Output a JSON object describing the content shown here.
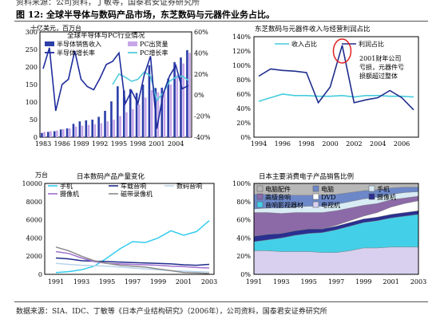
{
  "header": {
    "top_text": "资料来源：公司资料，丁敏等，国泰君安证券研究所",
    "figure_label": "图 12:",
    "figure_title": "全球半导体与数码产品市场，东芝数码与元器件业务占比。"
  },
  "footer": {
    "source": "数据来源：SIA、IDC、丁敏等《日本产业结构研究》（2006年），公司资料，国泰君安证券研究所"
  },
  "chart_data": [
    {
      "type": "bar",
      "title": "全球半导体与PC行业情况",
      "ylabel": "十亿美元，百万台",
      "ylim": [
        0,
        300
      ],
      "y2lim": [
        -40,
        60
      ],
      "y_ticks": [
        "0",
        "50",
        "100",
        "150",
        "200",
        "250",
        "300"
      ],
      "y2_ticks": [
        "-40%",
        "-20%",
        "0%",
        "20%",
        "40%",
        "60%"
      ],
      "x_ticks": [
        "1983",
        "1986",
        "1989",
        "1992",
        "1995",
        "1998",
        "2001",
        "2004"
      ],
      "colors": {
        "semi_bar": "#2c3ea8",
        "pc_bar": "#c6a6e8",
        "semi_growth": "#1f2d9c",
        "pc_growth": "#55ccdd"
      },
      "x": [
        1983,
        1984,
        1985,
        1986,
        1987,
        1988,
        1989,
        1990,
        1991,
        1992,
        1993,
        1994,
        1995,
        1996,
        1997,
        1998,
        1999,
        2000,
        2001,
        2002,
        2003,
        2004,
        2005,
        2006
      ],
      "series": [
        {
          "name": "半导体销售收入",
          "values": [
            12,
            15,
            17,
            22,
            25,
            38,
            45,
            48,
            50,
            58,
            75,
            102,
            145,
            133,
            137,
            126,
            150,
            205,
            140,
            141,
            167,
            214,
            227,
            248
          ]
        },
        {
          "name": "PC出货量",
          "values": [
            15,
            17,
            19,
            23,
            25,
            30,
            33,
            35,
            37,
            40,
            45,
            50,
            60,
            71,
            80,
            93,
            113,
            134,
            128,
            132,
            150,
            178,
            210,
            240
          ]
        },
        {
          "name": "半导体增长率",
          "values": [
            25,
            45,
            -15,
            10,
            15,
            42,
            15,
            8,
            5,
            16,
            29,
            32,
            40,
            -8,
            4,
            -8,
            19,
            37,
            -32,
            1,
            18,
            28,
            6,
            9
          ]
        },
        {
          "name": "PC增长率",
          "values": [
            null,
            null,
            null,
            null,
            null,
            null,
            null,
            null,
            null,
            null,
            null,
            10,
            20,
            17,
            13,
            15,
            22,
            18,
            -5,
            2,
            13,
            17,
            18,
            14
          ]
        }
      ]
    },
    {
      "type": "line",
      "title": "东芝数码与元器件收入与经营利润占比",
      "ylim": [
        0,
        140
      ],
      "y_ticks": [
        "0%",
        "20%",
        "40%",
        "60%",
        "80%",
        "100%",
        "120%",
        "140%"
      ],
      "x_ticks": [
        "1994",
        "1996",
        "1998",
        "2000",
        "2002",
        "2004",
        "2006"
      ],
      "colors": {
        "revenue": "#44ccdd",
        "profit": "#1f2d8c",
        "circle": "#e02020"
      },
      "x": [
        1994,
        1995,
        1996,
        1997,
        1998,
        1999,
        2000,
        2001,
        2002,
        2003,
        2004,
        2005,
        2006,
        2007
      ],
      "series": [
        {
          "name": "收入占比",
          "values": [
            50,
            55,
            60,
            58,
            58,
            57,
            57,
            58,
            56,
            58,
            58,
            57,
            57,
            56
          ]
        },
        {
          "name": "利润占比",
          "values": [
            85,
            95,
            93,
            92,
            90,
            48,
            70,
            128,
            48,
            52,
            55,
            65,
            55,
            38
          ]
        }
      ],
      "annotation": "2001财年公司亏损，元器件亏损额超过整体"
    },
    {
      "type": "line",
      "title": "日本数码产品产量变化",
      "ylabel": "万台",
      "ylim": [
        0,
        10000
      ],
      "y_ticks": [
        "0",
        "2000",
        "4000",
        "6000",
        "8000",
        "10000"
      ],
      "x_ticks": [
        "1991",
        "1993",
        "1995",
        "1997",
        "1999",
        "2001",
        "2003"
      ],
      "colors": {
        "phone": "#33ccee",
        "car": "#1f2d8c",
        "camera": "#b8d4ea",
        "vcr": "#a070d0",
        "tape": "#8a8a8a"
      },
      "x": [
        1991,
        1992,
        1993,
        1994,
        1995,
        1996,
        1997,
        1998,
        1999,
        2000,
        2001,
        2002,
        2003
      ],
      "series": [
        {
          "name": "手机",
          "values": [
            200,
            300,
            500,
            900,
            1800,
            2800,
            3600,
            3500,
            4000,
            4800,
            4300,
            4700,
            5900
          ]
        },
        {
          "name": "车载音响",
          "values": [
            1800,
            1700,
            1500,
            1450,
            1400,
            1350,
            1300,
            1250,
            1200,
            1150,
            1050,
            1000,
            1100
          ]
        },
        {
          "name": "数码音响",
          "values": [
            1200,
            1100,
            1000,
            950,
            900,
            800,
            700,
            600,
            500,
            400,
            350,
            300,
            250
          ]
        },
        {
          "name": "摄像机",
          "values": [
            2500,
            2300,
            1800,
            1400,
            1200,
            1150,
            1100,
            1050,
            1000,
            900,
            850,
            750,
            700
          ]
        },
        {
          "name": "磁带录像机",
          "values": [
            3000,
            2600,
            2000,
            1500,
            1200,
            1000,
            900,
            800,
            600,
            400,
            200,
            150,
            100
          ]
        }
      ]
    },
    {
      "type": "area",
      "title": "日本主要消费电子产品销售比例",
      "ylim": [
        0,
        100
      ],
      "y_ticks": [
        "0%",
        "20%",
        "40%",
        "60%",
        "80%",
        "100%"
      ],
      "x_ticks": [
        "1991",
        "1993",
        "1995",
        "1997",
        "1999",
        "2001",
        "2003"
      ],
      "x": [
        1991,
        1992,
        1993,
        1994,
        1995,
        1996,
        1997,
        1998,
        1999,
        2000,
        2001,
        2002,
        2003
      ],
      "series": [
        {
          "name": "电视机",
          "color": "#d8d0ee",
          "values": [
            26,
            26,
            25,
            25,
            25,
            24,
            24,
            26,
            29,
            29,
            30,
            30,
            30
          ]
        },
        {
          "name": "音响影视器材",
          "color": "#44cfe8",
          "values": [
            10,
            12,
            15,
            18,
            20,
            22,
            25,
            27,
            28,
            30,
            32,
            34,
            36
          ]
        },
        {
          "name": "摄像机",
          "color": "#2a2f90",
          "values": [
            6,
            6,
            5,
            5,
            5,
            4,
            4,
            4,
            4,
            4,
            4,
            4,
            4
          ]
        },
        {
          "name": "DVD",
          "color": "#ffffff",
          "values": [
            0,
            0,
            0,
            0,
            0,
            0,
            1,
            2,
            3,
            5,
            8,
            10,
            11
          ]
        },
        {
          "name": "高级音响",
          "color": "#8c6aa8",
          "values": [
            26,
            24,
            22,
            20,
            18,
            18,
            16,
            14,
            12,
            10,
            8,
            6,
            5
          ]
        },
        {
          "name": "手机",
          "color": "#d9ecf6",
          "values": [
            4,
            5,
            6,
            6,
            7,
            7,
            7,
            7,
            7,
            7,
            6,
            6,
            5
          ]
        },
        {
          "name": "电脑",
          "color": "#6d88c8",
          "values": [
            16,
            15,
            14,
            13,
            12,
            12,
            11,
            10,
            9,
            8,
            7,
            6,
            5
          ]
        },
        {
          "name": "电脑配件",
          "color": "#b8b8b8",
          "values": [
            12,
            12,
            13,
            13,
            13,
            13,
            12,
            10,
            8,
            7,
            5,
            4,
            4
          ]
        }
      ]
    }
  ]
}
